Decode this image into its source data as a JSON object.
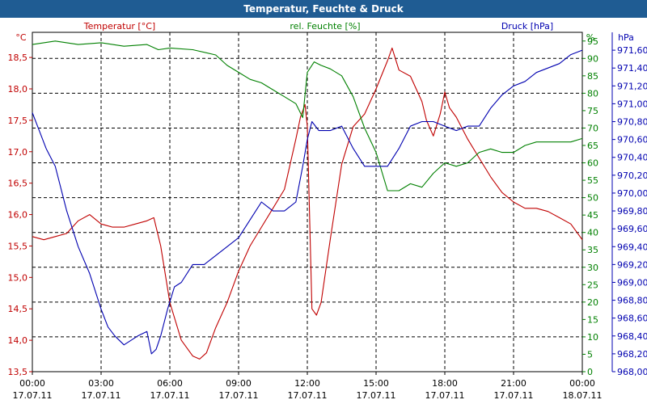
{
  "window": {
    "title": "Temperatur, Feuchte & Druck"
  },
  "chart_data": {
    "type": "line",
    "title": "Temperatur, Feuchte & Druck",
    "x_ticks": [
      {
        "time": "00:00",
        "date": "17.07.11"
      },
      {
        "time": "03:00",
        "date": "17.07.11"
      },
      {
        "time": "06:00",
        "date": "17.07.11"
      },
      {
        "time": "09:00",
        "date": "17.07.11"
      },
      {
        "time": "12:00",
        "date": "17.07.11"
      },
      {
        "time": "15:00",
        "date": "17.07.11"
      },
      {
        "time": "18:00",
        "date": "17.07.11"
      },
      {
        "time": "21:00",
        "date": "17.07.11"
      },
      {
        "time": "00:00",
        "date": "18.07.11"
      }
    ],
    "xlim": [
      0,
      24
    ],
    "grid": true,
    "axes": {
      "temperature": {
        "unit": "°C",
        "label": "Temperatur [°C]",
        "ylim": [
          13.5,
          18.9
        ],
        "ticks": [
          "13,5",
          "14,0",
          "14,5",
          "15,0",
          "15,5",
          "16,0",
          "16,5",
          "17,0",
          "17,5",
          "18,0",
          "18,5"
        ],
        "color": "#c00000"
      },
      "humidity": {
        "unit": "%",
        "label": "rel. Feuchte [%]",
        "ylim": [
          0,
          97.5
        ],
        "ticks": [
          "0",
          "5",
          "10",
          "15",
          "20",
          "25",
          "30",
          "35",
          "40",
          "45",
          "50",
          "55",
          "60",
          "65",
          "70",
          "75",
          "80",
          "85",
          "90",
          "95"
        ],
        "color": "#008000"
      },
      "pressure": {
        "unit": "hPa",
        "label": "Druck [hPa]",
        "ylim": [
          968.0,
          971.8
        ],
        "ticks": [
          "968,00",
          "968,20",
          "968,40",
          "968,60",
          "968,80",
          "969,00",
          "969,20",
          "969,40",
          "969,60",
          "969,80",
          "970,00",
          "970,20",
          "970,40",
          "970,60",
          "970,80",
          "971,00",
          "971,20",
          "971,40",
          "971,60"
        ],
        "color": "#0000b0"
      }
    },
    "series": [
      {
        "name": "Temperatur [°C]",
        "axis": "temperature",
        "color": "#c00000",
        "x": [
          0,
          0.5,
          1,
          1.5,
          2,
          2.5,
          3,
          3.5,
          4,
          4.5,
          5,
          5.3,
          5.6,
          6,
          6.5,
          7,
          7.3,
          7.6,
          8,
          8.5,
          9,
          9.5,
          10,
          10.5,
          11,
          11.5,
          11.7,
          11.9,
          12,
          12.2,
          12.4,
          12.6,
          13,
          13.5,
          14,
          14.5,
          15,
          15.5,
          15.7,
          16,
          16.5,
          17,
          17.2,
          17.5,
          17.8,
          18,
          18.2,
          18.5,
          19,
          19.5,
          20,
          20.5,
          21,
          21.5,
          22,
          22.5,
          23,
          23.5,
          24
        ],
        "y": [
          15.65,
          15.6,
          15.65,
          15.7,
          15.9,
          16.0,
          15.85,
          15.8,
          15.8,
          15.85,
          15.9,
          15.95,
          15.5,
          14.6,
          14.0,
          13.75,
          13.7,
          13.8,
          14.2,
          14.6,
          15.1,
          15.5,
          15.8,
          16.1,
          16.4,
          17.2,
          17.55,
          17.75,
          17.4,
          14.5,
          14.4,
          14.6,
          15.6,
          16.8,
          17.4,
          17.6,
          18.0,
          18.45,
          18.65,
          18.3,
          18.2,
          17.8,
          17.5,
          17.25,
          17.6,
          17.95,
          17.7,
          17.55,
          17.2,
          16.9,
          16.6,
          16.35,
          16.2,
          16.1,
          16.1,
          16.05,
          15.95,
          15.85,
          15.6
        ]
      },
      {
        "name": "rel. Feuchte [%]",
        "axis": "humidity",
        "color": "#008000",
        "x": [
          0,
          1,
          2,
          3,
          4,
          5,
          5.5,
          6,
          7,
          8,
          8.5,
          9,
          9.5,
          10,
          10.5,
          11,
          11.5,
          11.8,
          12,
          12.3,
          12.6,
          13,
          13.5,
          14,
          14.5,
          15,
          15.5,
          16,
          16.5,
          17,
          17.5,
          18,
          18.5,
          19,
          19.5,
          20,
          20.5,
          21,
          21.5,
          22,
          22.5,
          23,
          23.5,
          24
        ],
        "y": [
          94,
          95,
          94,
          94.5,
          93.5,
          94,
          92.5,
          93,
          92.5,
          91,
          88,
          86,
          84,
          83,
          81,
          79,
          77,
          73,
          86,
          89,
          88,
          87,
          85,
          79,
          70,
          63,
          52,
          52,
          54,
          53,
          57,
          60,
          59,
          60,
          63,
          64,
          63,
          63,
          65,
          66,
          66,
          66,
          66,
          67
        ]
      },
      {
        "name": "Druck [hPa]",
        "axis": "pressure",
        "color": "#0000b0",
        "x": [
          0,
          0.3,
          0.6,
          1,
          1.5,
          2,
          2.5,
          3,
          3.3,
          3.6,
          4,
          4.3,
          4.6,
          5,
          5.2,
          5.4,
          5.6,
          5.9,
          6.2,
          6.5,
          7,
          7.5,
          8,
          8.5,
          9,
          9.5,
          10,
          10.5,
          11,
          11.5,
          11.8,
          12,
          12.2,
          12.5,
          13,
          13.5,
          14,
          14.5,
          15,
          15.5,
          16,
          16.5,
          17,
          17.5,
          18,
          18.5,
          19,
          19.5,
          20,
          20.5,
          21,
          21.5,
          22,
          22.5,
          23,
          23.5,
          24
        ],
        "y": [
          970.9,
          970.7,
          970.5,
          970.3,
          969.8,
          969.4,
          969.1,
          968.7,
          968.5,
          968.4,
          968.3,
          968.35,
          968.4,
          968.45,
          968.2,
          968.25,
          968.4,
          968.7,
          968.95,
          969.0,
          969.2,
          969.2,
          969.3,
          969.4,
          969.5,
          969.7,
          969.9,
          969.8,
          969.8,
          969.9,
          970.3,
          970.6,
          970.8,
          970.7,
          970.7,
          970.75,
          970.5,
          970.3,
          970.3,
          970.3,
          970.5,
          970.75,
          970.8,
          970.8,
          970.75,
          970.7,
          970.75,
          970.75,
          970.95,
          971.1,
          971.2,
          971.25,
          971.35,
          971.4,
          971.45,
          971.55,
          971.6
        ]
      }
    ]
  }
}
